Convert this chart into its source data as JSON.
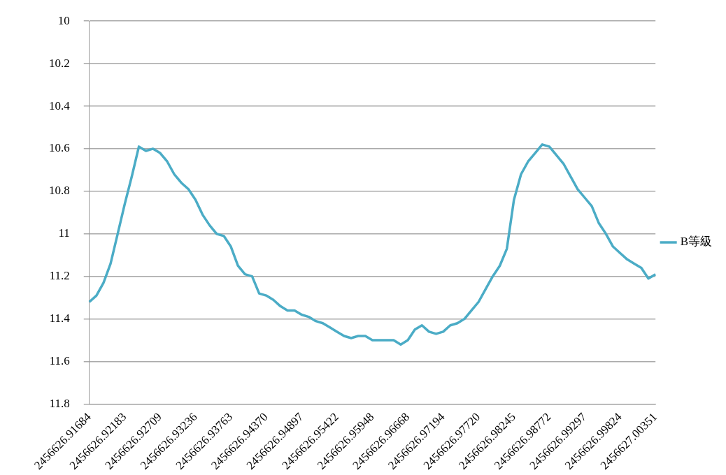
{
  "chart_data": {
    "type": "line",
    "categories": [
      "2456626.91684",
      null,
      null,
      null,
      null,
      "2456626.92183",
      null,
      null,
      null,
      null,
      "2456626.92709",
      null,
      null,
      null,
      null,
      "2456626.93236",
      null,
      null,
      null,
      null,
      "2456626.93763",
      null,
      null,
      null,
      null,
      "2456626.94370",
      null,
      null,
      null,
      null,
      "2456626.94897",
      null,
      null,
      null,
      null,
      "2456626.95422",
      null,
      null,
      null,
      null,
      "2456626.95948",
      null,
      null,
      null,
      null,
      "2456626.96668",
      null,
      null,
      null,
      null,
      "2456626.97194",
      null,
      null,
      null,
      null,
      "2456626.97720",
      null,
      null,
      null,
      null,
      "2456626.98245",
      null,
      null,
      null,
      null,
      "2456626.98772",
      null,
      null,
      null,
      null,
      "2456626.99297",
      null,
      null,
      null,
      null,
      "2456626.99824",
      null,
      null,
      null,
      null,
      "2456627.00351"
    ],
    "series": [
      {
        "name": "B等級",
        "color": "#4bacc6",
        "values": [
          11.32,
          11.29,
          11.23,
          11.14,
          11.0,
          10.86,
          10.73,
          10.59,
          10.61,
          10.6,
          10.62,
          10.66,
          10.72,
          10.76,
          10.79,
          10.84,
          10.91,
          10.96,
          11.0,
          11.01,
          11.06,
          11.15,
          11.19,
          11.2,
          11.28,
          11.29,
          11.31,
          11.34,
          11.36,
          11.36,
          11.38,
          11.39,
          11.41,
          11.42,
          11.44,
          11.46,
          11.48,
          11.49,
          11.48,
          11.48,
          11.5,
          11.5,
          11.5,
          11.5,
          11.52,
          11.5,
          11.45,
          11.43,
          11.46,
          11.47,
          11.46,
          11.43,
          11.42,
          11.4,
          11.36,
          11.32,
          11.26,
          11.2,
          11.15,
          11.07,
          10.84,
          10.72,
          10.66,
          10.62,
          10.58,
          10.59,
          10.63,
          10.67,
          10.73,
          10.79,
          10.83,
          10.87,
          10.95,
          11.0,
          11.06,
          11.09,
          11.12,
          11.14,
          11.16,
          11.21,
          11.19
        ]
      }
    ],
    "ylim": [
      11.8,
      10
    ],
    "yticks": [
      10,
      10.2,
      10.4,
      10.6,
      10.8,
      11,
      11.2,
      11.4,
      11.6,
      11.8
    ],
    "grid": "y",
    "legend": "right",
    "marker": "none",
    "line_style": "solid"
  }
}
